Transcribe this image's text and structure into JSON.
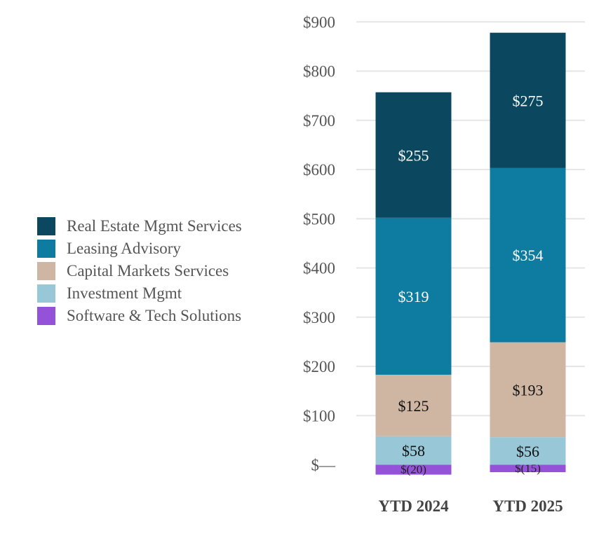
{
  "chart_data": {
    "type": "bar",
    "stacked": true,
    "categories": [
      "YTD 2024",
      "YTD 2025"
    ],
    "series": [
      {
        "name": "Software & Tech Solutions",
        "values": [
          -20,
          -15
        ],
        "color": "#9452d8",
        "labels": [
          "$(20)",
          "$(15)"
        ],
        "label_color": "#222222"
      },
      {
        "name": "Investment Mgmt",
        "values": [
          58,
          56
        ],
        "color": "#98c8d7",
        "labels": [
          "$58",
          "$56"
        ],
        "label_color": "#111111"
      },
      {
        "name": "Capital Markets Services",
        "values": [
          125,
          193
        ],
        "color": "#cfb6a3",
        "labels": [
          "$125",
          "$193"
        ],
        "label_color": "#111111"
      },
      {
        "name": "Leasing Advisory",
        "values": [
          319,
          354
        ],
        "color": "#0e7ba1",
        "labels": [
          "$319",
          "$354"
        ],
        "label_color": "#ffffff"
      },
      {
        "name": "Real Estate Mgmt Services",
        "values": [
          255,
          275
        ],
        "color": "#0b485f",
        "labels": [
          "$255",
          "$275"
        ],
        "label_color": "#ffffff"
      }
    ],
    "legend": {
      "position": "left",
      "order": [
        "Real Estate Mgmt Services",
        "Leasing Advisory",
        "Capital Markets Services",
        "Investment Mgmt",
        "Software & Tech Solutions"
      ]
    },
    "y_ticks": [
      {
        "value": 0,
        "label": "$—"
      },
      {
        "value": 100,
        "label": "$100"
      },
      {
        "value": 200,
        "label": "$200"
      },
      {
        "value": 300,
        "label": "$300"
      },
      {
        "value": 400,
        "label": "$400"
      },
      {
        "value": 500,
        "label": "$500"
      },
      {
        "value": 600,
        "label": "$600"
      },
      {
        "value": 700,
        "label": "$700"
      },
      {
        "value": 800,
        "label": "$800"
      },
      {
        "value": 900,
        "label": "$900"
      }
    ],
    "ylim": [
      -20,
      900
    ],
    "grid": true,
    "title": "",
    "xlabel": "",
    "ylabel": ""
  }
}
